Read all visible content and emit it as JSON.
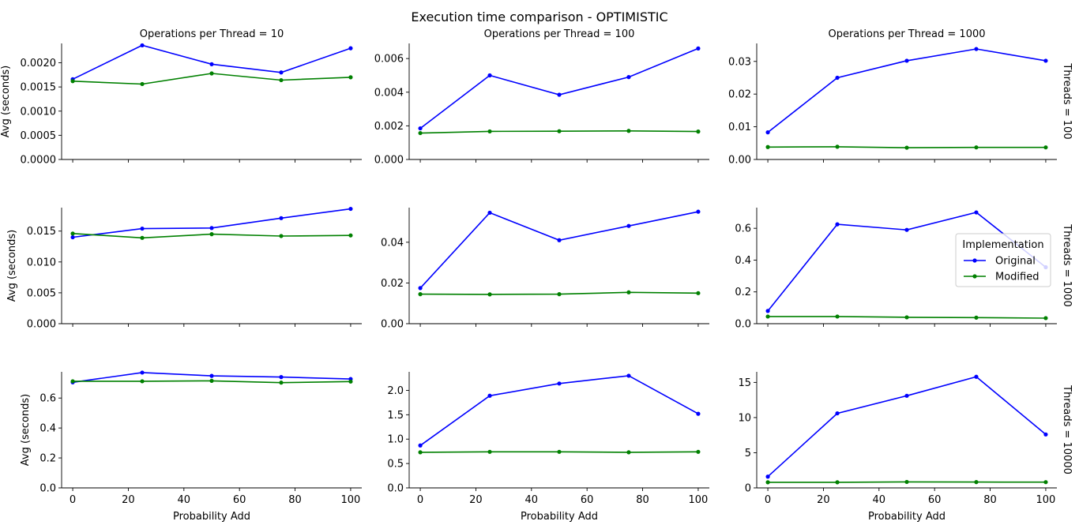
{
  "chart_data": {
    "type": "line",
    "title": "Execution time comparison - OPTIMISTIC",
    "xlabel": "Probability Add",
    "ylabel": "Avg (seconds)",
    "x": [
      0,
      25,
      50,
      75,
      100
    ],
    "xlim": [
      -4,
      104
    ],
    "xticks": [
      0,
      20,
      40,
      60,
      80,
      100
    ],
    "col_titles": [
      "Operations per Thread = 10",
      "Operations per Thread = 100",
      "Operations per Thread = 1000"
    ],
    "row_titles": [
      "Threads = 100",
      "Threads = 1000",
      "Threads = 10000"
    ],
    "legend": {
      "title": "Implementation",
      "entries": [
        "Original",
        "Modified"
      ],
      "placement": "right"
    },
    "colors": {
      "Original": "#0000ff",
      "Modified": "#008000"
    },
    "panels": [
      [
        {
          "ylim": [
            0,
            0.0024
          ],
          "yticks": [
            "0.0000",
            "0.0005",
            "0.0010",
            "0.0015",
            "0.0020"
          ],
          "ytick_values": [
            0,
            0.0005,
            0.001,
            0.0015,
            0.002
          ],
          "series": [
            {
              "name": "Original",
              "values": [
                0.00166,
                0.00236,
                0.00197,
                0.0018,
                0.0023
              ]
            },
            {
              "name": "Modified",
              "values": [
                0.00162,
                0.00156,
                0.00178,
                0.00164,
                0.0017
              ]
            }
          ]
        },
        {
          "ylim": [
            0,
            0.0069
          ],
          "yticks": [
            "0.000",
            "0.002",
            "0.004",
            "0.006"
          ],
          "ytick_values": [
            0,
            0.002,
            0.004,
            0.006
          ],
          "series": [
            {
              "name": "Original",
              "values": [
                0.00185,
                0.005,
                0.00385,
                0.0049,
                0.0066
              ]
            },
            {
              "name": "Modified",
              "values": [
                0.00157,
                0.00167,
                0.00168,
                0.0017,
                0.00166
              ]
            }
          ]
        },
        {
          "ylim": [
            0,
            0.0355
          ],
          "yticks": [
            "0.00",
            "0.01",
            "0.02",
            "0.03"
          ],
          "ytick_values": [
            0,
            0.01,
            0.02,
            0.03
          ],
          "series": [
            {
              "name": "Original",
              "values": [
                0.0083,
                0.025,
                0.0302,
                0.0338,
                0.0302
              ]
            },
            {
              "name": "Modified",
              "values": [
                0.0038,
                0.0039,
                0.0036,
                0.0037,
                0.0037
              ]
            }
          ]
        }
      ],
      [
        {
          "ylim": [
            0,
            0.0188
          ],
          "yticks": [
            "0.000",
            "0.005",
            "0.010",
            "0.015"
          ],
          "ytick_values": [
            0,
            0.005,
            0.01,
            0.015
          ],
          "series": [
            {
              "name": "Original",
              "values": [
                0.014,
                0.0154,
                0.0155,
                0.0171,
                0.0186
              ]
            },
            {
              "name": "Modified",
              "values": [
                0.0146,
                0.0139,
                0.0145,
                0.0142,
                0.0143
              ]
            }
          ]
        },
        {
          "ylim": [
            0,
            0.057
          ],
          "yticks": [
            "0.00",
            "0.02",
            "0.04"
          ],
          "ytick_values": [
            0,
            0.02,
            0.04
          ],
          "series": [
            {
              "name": "Original",
              "values": [
                0.0175,
                0.0545,
                0.041,
                0.048,
                0.055
              ]
            },
            {
              "name": "Modified",
              "values": [
                0.0145,
                0.0144,
                0.0145,
                0.0154,
                0.015
              ]
            }
          ]
        },
        {
          "ylim": [
            0,
            0.73
          ],
          "yticks": [
            "0.0",
            "0.2",
            "0.4",
            "0.6"
          ],
          "ytick_values": [
            0,
            0.2,
            0.4,
            0.6
          ],
          "series": [
            {
              "name": "Original",
              "values": [
                0.08,
                0.625,
                0.59,
                0.7,
                0.355
              ]
            },
            {
              "name": "Modified",
              "values": [
                0.045,
                0.045,
                0.04,
                0.038,
                0.035
              ]
            }
          ]
        }
      ],
      [
        {
          "ylim": [
            0,
            0.775
          ],
          "yticks": [
            "0.0",
            "0.2",
            "0.4",
            "0.6"
          ],
          "ytick_values": [
            0,
            0.2,
            0.4,
            0.6
          ],
          "series": [
            {
              "name": "Original",
              "values": [
                0.705,
                0.77,
                0.748,
                0.74,
                0.727
              ]
            },
            {
              "name": "Modified",
              "values": [
                0.712,
                0.712,
                0.715,
                0.703,
                0.71
              ]
            }
          ]
        },
        {
          "ylim": [
            0,
            2.38
          ],
          "yticks": [
            "0.0",
            "0.5",
            "1.0",
            "1.5",
            "2.0"
          ],
          "ytick_values": [
            0,
            0.5,
            1,
            1.5,
            2
          ],
          "series": [
            {
              "name": "Original",
              "values": [
                0.87,
                1.89,
                2.14,
                2.3,
                1.52
              ]
            },
            {
              "name": "Modified",
              "values": [
                0.73,
                0.74,
                0.74,
                0.73,
                0.74
              ]
            }
          ]
        },
        {
          "ylim": [
            0,
            16.5
          ],
          "yticks": [
            "0",
            "5",
            "10",
            "15"
          ],
          "ytick_values": [
            0,
            5,
            10,
            15
          ],
          "series": [
            {
              "name": "Original",
              "values": [
                1.6,
                10.6,
                13.1,
                15.8,
                7.6
              ]
            },
            {
              "name": "Modified",
              "values": [
                0.8,
                0.8,
                0.85,
                0.83,
                0.82
              ]
            }
          ]
        }
      ]
    ]
  }
}
